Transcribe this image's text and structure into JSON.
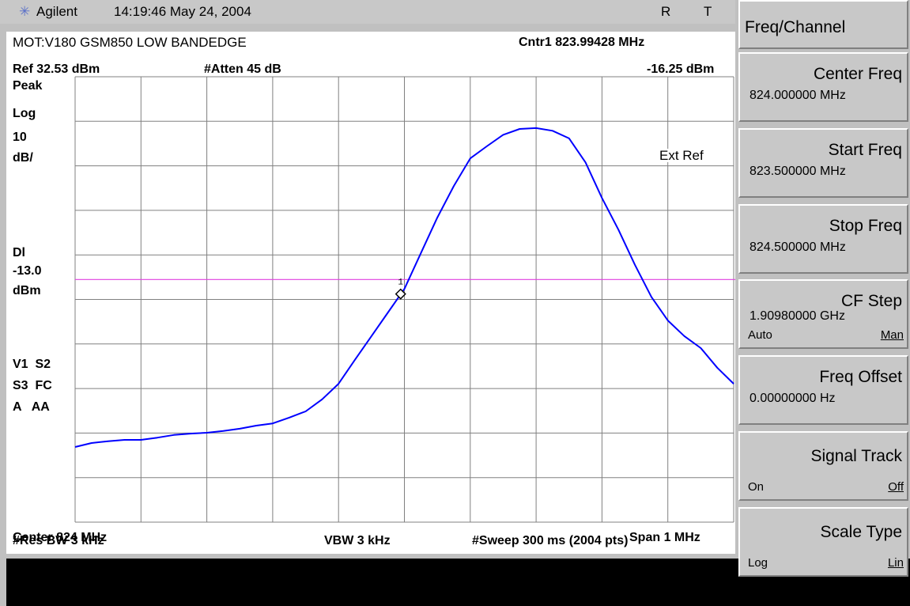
{
  "header": {
    "brand": "Agilent",
    "time": "14:19:46 May 24, 2004",
    "indicators": [
      "R",
      "T"
    ]
  },
  "screen": {
    "title": "MOT:V180 GSM850 LOW BANDEDGE",
    "ref": "Ref 32.53 dBm",
    "atten": "#Atten 45 dB",
    "left_labels": [
      "Peak",
      "Log",
      "10",
      "dB/"
    ],
    "dl": "Dl",
    "dl_unit": "dBm",
    "status": [
      "V1  S2",
      "S3  FC",
      "A   AA"
    ],
    "ext_ref": "Ext Ref",
    "center": "Center 824 MHz",
    "span": "Span 1 MHz",
    "rbw": "#Res BW 3 kHz",
    "vbw": "VBW 3 kHz",
    "sweep": "#Sweep 300 ms (2004 pts)"
  },
  "chart_data": {
    "type": "line",
    "xlim": [
      823.5,
      824.5
    ],
    "ylim": [
      -67.47,
      32.53
    ],
    "xticks": [
      823.5,
      823.6,
      823.7,
      823.8,
      823.9,
      824.0,
      824.1,
      824.2,
      824.3,
      824.4,
      824.5
    ],
    "yticks": [
      32.53,
      22.53,
      12.53,
      2.53,
      -7.47,
      -17.47,
      -27.47,
      -37.47,
      -47.47,
      -57.47,
      -67.47
    ],
    "grid": true,
    "x": [
      823.5,
      823.525,
      823.55,
      823.575,
      823.6,
      823.625,
      823.65,
      823.675,
      823.7,
      823.725,
      823.75,
      823.775,
      823.8,
      823.825,
      823.85,
      823.875,
      823.9,
      823.925,
      823.95,
      823.975,
      824.0,
      824.025,
      824.05,
      824.075,
      824.1,
      824.125,
      824.15,
      824.175,
      824.2,
      824.225,
      824.25,
      824.275,
      824.3,
      824.325,
      824.35,
      824.375,
      824.4,
      824.425,
      824.45,
      824.475,
      824.5
    ],
    "series": [
      {
        "color": "#0000ff",
        "values": [
          -50.6,
          -49.7,
          -49.3,
          -49.0,
          -49.0,
          -48.5,
          -47.9,
          -47.6,
          -47.4,
          -47.0,
          -46.5,
          -45.8,
          -45.3,
          -44.0,
          -42.6,
          -39.9,
          -36.4,
          -31.0,
          -25.7,
          -20.4,
          -15.1,
          -7.1,
          0.9,
          8.0,
          14.2,
          16.9,
          19.5,
          20.8,
          21.0,
          20.4,
          18.7,
          13.3,
          5.3,
          -1.8,
          -9.7,
          -16.9,
          -22.2,
          -25.7,
          -28.4,
          -32.8,
          -36.4
        ]
      }
    ],
    "display_line": {
      "value": -13,
      "label": "-13.0",
      "color": "#e040e0"
    },
    "marker": {
      "x": 823.99428,
      "value": -16.25,
      "number": "1",
      "label_x": "Cntr1 823.99428 MHz",
      "label_y": "-16.25 dBm"
    }
  },
  "menu": {
    "title": "Freq/Channel",
    "keys": [
      {
        "label": "Center Freq",
        "value": "824.000000 MHz"
      },
      {
        "label": "Start Freq",
        "value": "823.500000 MHz"
      },
      {
        "label": "Stop Freq",
        "value": "824.500000 MHz"
      },
      {
        "label": "CF Step",
        "value": "1.90980000 GHz",
        "left": "Auto",
        "right": "Man"
      },
      {
        "label": "Freq Offset",
        "value": "0.00000000  Hz"
      },
      {
        "label": "Signal Track",
        "left": "On",
        "right": "Off"
      },
      {
        "label": "Scale Type",
        "left": "Log",
        "right": "Lin"
      }
    ]
  }
}
